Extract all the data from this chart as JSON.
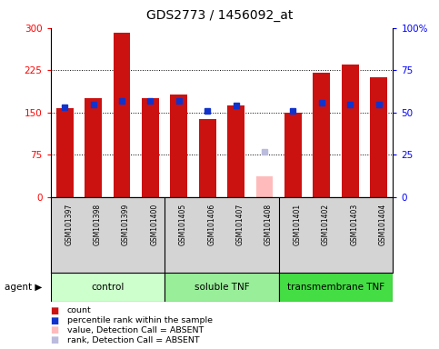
{
  "title": "GDS2773 / 1456092_at",
  "samples": [
    "GSM101397",
    "GSM101398",
    "GSM101399",
    "GSM101400",
    "GSM101405",
    "GSM101406",
    "GSM101407",
    "GSM101408",
    "GSM101401",
    "GSM101402",
    "GSM101403",
    "GSM101404"
  ],
  "count_values": [
    158,
    175,
    291,
    175,
    182,
    138,
    163,
    null,
    150,
    220,
    235,
    213
  ],
  "absent_value": 37,
  "absent_rank": 27,
  "absent_index": 7,
  "percentile_values": [
    53,
    55,
    57,
    57,
    57,
    51,
    54,
    null,
    51,
    56,
    55,
    55
  ],
  "groups": [
    {
      "label": "control",
      "start": 0,
      "end": 4,
      "color": "#ccffcc"
    },
    {
      "label": "soluble TNF",
      "start": 4,
      "end": 8,
      "color": "#99ee99"
    },
    {
      "label": "transmembrane TNF",
      "start": 8,
      "end": 12,
      "color": "#44dd44"
    }
  ],
  "ylim_left": [
    0,
    300
  ],
  "ylim_right": [
    0,
    100
  ],
  "yticks_left": [
    0,
    75,
    150,
    225,
    300
  ],
  "yticks_right": [
    0,
    25,
    50,
    75,
    100
  ],
  "bar_color_red": "#cc1111",
  "bar_color_blue": "#1133cc",
  "bar_absent_pink": "#ffbbbb",
  "bar_absent_lilac": "#bbbbdd",
  "legend_items": [
    {
      "color": "#cc1111",
      "label": "count"
    },
    {
      "color": "#1133cc",
      "label": "percentile rank within the sample"
    },
    {
      "color": "#ffbbbb",
      "label": "value, Detection Call = ABSENT"
    },
    {
      "color": "#bbbbdd",
      "label": "rank, Detection Call = ABSENT"
    }
  ]
}
